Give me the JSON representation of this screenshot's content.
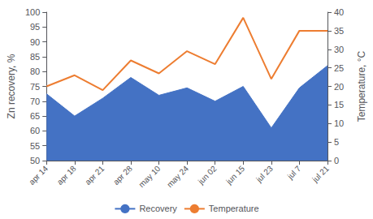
{
  "chart_data": {
    "type": "line",
    "categories": [
      "apr 14",
      "apr 18",
      "apr 21",
      "apr 28",
      "may 10",
      "may 24",
      "jun 02",
      "jun 15",
      "jul 23",
      "jul 7",
      "jul 21"
    ],
    "series": [
      {
        "name": "Recovery",
        "type": "area",
        "color": "#4472C4",
        "values": [
          72.5,
          65.0,
          71.0,
          78.0,
          72.0,
          74.5,
          70.0,
          75.0,
          61.0,
          74.5,
          82.0
        ]
      },
      {
        "name": "Temperature",
        "type": "line",
        "color": "#ED7D31",
        "axis": "y2",
        "values": [
          20.0,
          23.0,
          19.0,
          27.0,
          23.5,
          29.5,
          26.0,
          38.5,
          22.0,
          35.0,
          35.0
        ]
      }
    ],
    "ylabel": "Zn recovery, %",
    "y2label": "Temperature, °C",
    "ylim": [
      50,
      100
    ],
    "yticks": [
      50,
      55,
      60,
      65,
      70,
      75,
      80,
      85,
      90,
      95,
      100
    ],
    "y2lim": [
      0,
      40
    ],
    "y2ticks": [
      0,
      5,
      10,
      15,
      20,
      25,
      30,
      35,
      40
    ],
    "grid": false,
    "legend": "bottom"
  }
}
